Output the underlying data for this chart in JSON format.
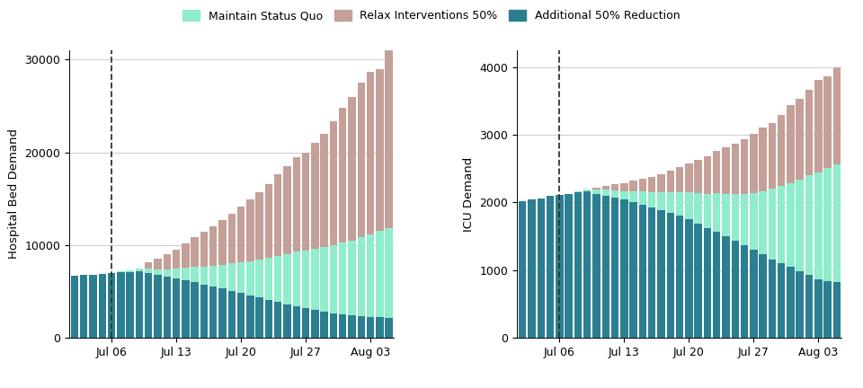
{
  "color_blue": "#2b7f91",
  "color_cyan": "#90edcc",
  "color_pink": "#c4a098",
  "bg_color": "#ffffff",
  "grid_color": "#cccccc",
  "dashed_day": 4,
  "n_days": 35,
  "tick_days": [
    4,
    11,
    18,
    25,
    32
  ],
  "tick_labels": [
    "Jul 06",
    "Jul 13",
    "Jul 20",
    "Jul 27",
    "Aug 03"
  ],
  "ylabel_left": "Hospital Bed Demand",
  "ylabel_right": "ICU Demand",
  "ylim_left": [
    0,
    31000
  ],
  "ylim_right": [
    0,
    4250
  ],
  "yticks_left": [
    0,
    10000,
    20000,
    30000
  ],
  "yticks_right": [
    0,
    1000,
    2000,
    3000,
    4000
  ],
  "legend_labels": [
    "Maintain Status Quo",
    "Relax Interventions 50%",
    "Additional 50% Reduction"
  ],
  "hosp_blue": [
    6700,
    6750,
    6800,
    6850,
    7000,
    7050,
    7100,
    7150,
    6950,
    6750,
    6550,
    6350,
    6150,
    5950,
    5700,
    5500,
    5300,
    5050,
    4800,
    4550,
    4300,
    4100,
    3850,
    3600,
    3400,
    3150,
    2950,
    2800,
    2650,
    2500,
    2400,
    2300,
    2250,
    2200,
    2150
  ],
  "hosp_cyan": [
    0,
    0,
    0,
    0,
    0,
    100,
    200,
    300,
    500,
    650,
    850,
    1100,
    1350,
    1650,
    1950,
    2250,
    2550,
    2950,
    3350,
    3700,
    4100,
    4500,
    4950,
    5400,
    5850,
    6250,
    6650,
    7000,
    7350,
    7750,
    8100,
    8500,
    8900,
    9300,
    9700
  ],
  "hosp_pink": [
    0,
    0,
    0,
    0,
    0,
    0,
    0,
    0,
    700,
    1100,
    1600,
    2050,
    2700,
    3200,
    3750,
    4250,
    4850,
    5400,
    5950,
    6650,
    7300,
    8000,
    8800,
    9500,
    10250,
    10600,
    11400,
    12200,
    13400,
    14550,
    15500,
    16700,
    17550,
    17500,
    19150
  ],
  "icu_blue": [
    2020,
    2040,
    2060,
    2100,
    2110,
    2120,
    2150,
    2160,
    2130,
    2100,
    2070,
    2040,
    2010,
    1970,
    1930,
    1890,
    1850,
    1800,
    1750,
    1690,
    1620,
    1570,
    1500,
    1440,
    1370,
    1300,
    1230,
    1160,
    1100,
    1050,
    980,
    930,
    860,
    830,
    820
  ],
  "icu_cyan": [
    0,
    0,
    0,
    0,
    0,
    10,
    20,
    30,
    60,
    90,
    110,
    130,
    160,
    190,
    220,
    260,
    300,
    350,
    400,
    450,
    510,
    570,
    630,
    690,
    760,
    840,
    930,
    1040,
    1140,
    1240,
    1360,
    1470,
    1590,
    1680,
    1750
  ],
  "icu_pink": [
    0,
    0,
    0,
    0,
    0,
    0,
    0,
    0,
    30,
    60,
    90,
    120,
    150,
    190,
    230,
    270,
    320,
    370,
    430,
    490,
    560,
    620,
    680,
    740,
    800,
    870,
    950,
    980,
    1060,
    1150,
    1200,
    1270,
    1360,
    1350,
    1430
  ]
}
